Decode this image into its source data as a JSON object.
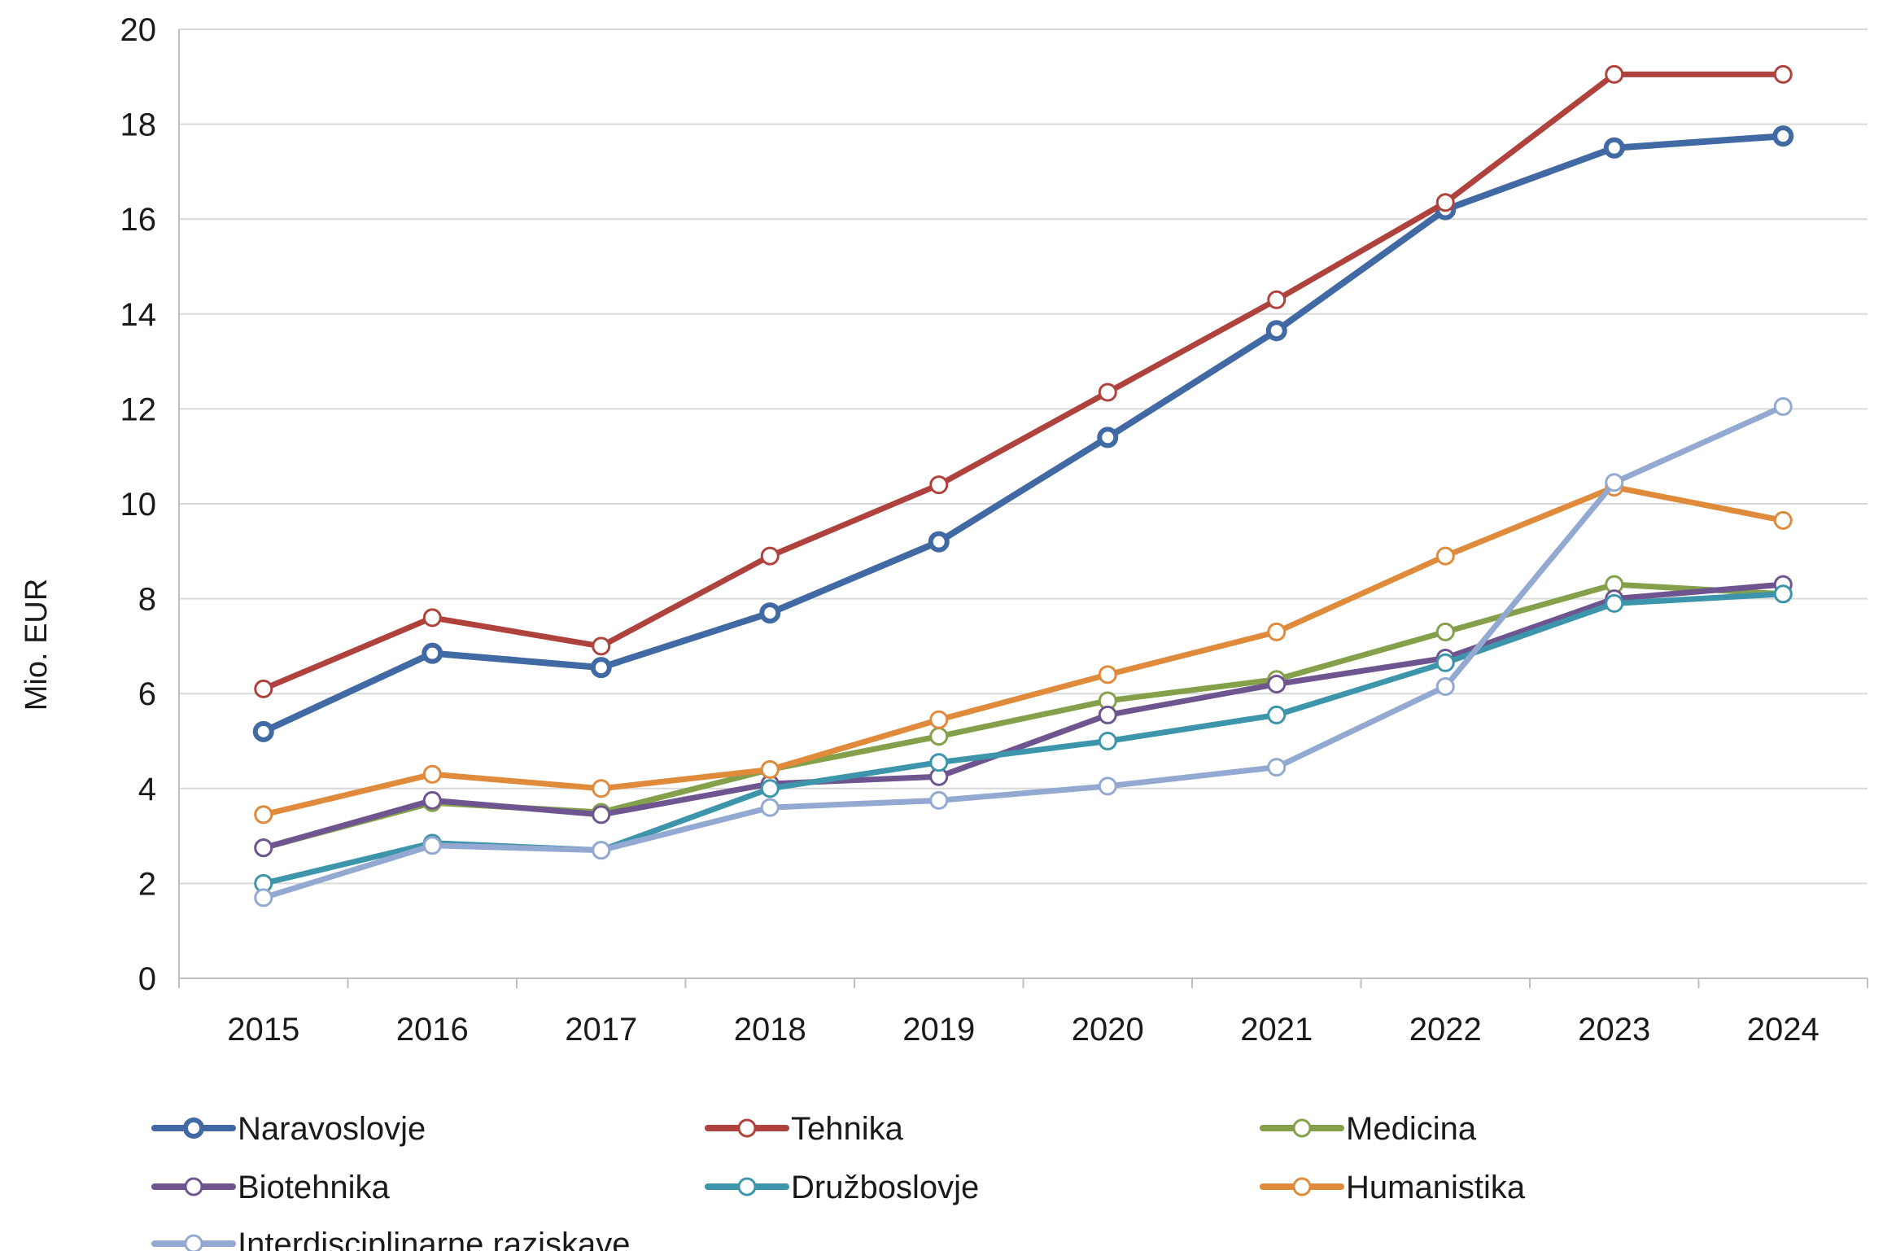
{
  "chart_data": {
    "type": "line",
    "title": "",
    "xlabel": "",
    "ylabel": "Mio. EUR",
    "ylim": [
      0,
      20
    ],
    "ytick_step": 2,
    "grid": "horizontal",
    "legend_position": "bottom",
    "categories": [
      "2015",
      "2016",
      "2017",
      "2018",
      "2019",
      "2020",
      "2021",
      "2022",
      "2023",
      "2024"
    ],
    "series": [
      {
        "name": "Naravoslovje",
        "color": "#4169A4",
        "values": [
          5.2,
          6.85,
          6.55,
          7.7,
          9.2,
          11.4,
          13.65,
          16.2,
          17.5,
          17.75
        ]
      },
      {
        "name": "Tehnika",
        "color": "#B0423D",
        "values": [
          6.1,
          7.6,
          7.0,
          8.9,
          10.4,
          12.35,
          14.3,
          16.35,
          19.05,
          19.05
        ]
      },
      {
        "name": "Medicina",
        "color": "#84A04A",
        "values": [
          2.75,
          3.7,
          3.5,
          4.4,
          5.1,
          5.85,
          6.3,
          7.3,
          8.3,
          8.1
        ]
      },
      {
        "name": "Biotehnika",
        "color": "#6E5590",
        "values": [
          2.75,
          3.75,
          3.45,
          4.1,
          4.25,
          5.55,
          6.2,
          6.75,
          8.0,
          8.3
        ]
      },
      {
        "name": "Družboslovje",
        "color": "#3D95AB",
        "values": [
          2.0,
          2.85,
          2.7,
          4.0,
          4.55,
          5.0,
          5.55,
          6.65,
          7.9,
          8.1
        ]
      },
      {
        "name": "Humanistika",
        "color": "#E08A3C",
        "values": [
          3.45,
          4.3,
          4.0,
          4.4,
          5.45,
          6.4,
          7.3,
          8.9,
          10.35,
          9.65
        ]
      },
      {
        "name": "Interdisciplinarne raziskave",
        "color": "#93A9D1",
        "values": [
          1.7,
          2.8,
          2.7,
          3.6,
          3.75,
          4.05,
          4.45,
          6.15,
          10.45,
          12.05
        ]
      }
    ]
  }
}
